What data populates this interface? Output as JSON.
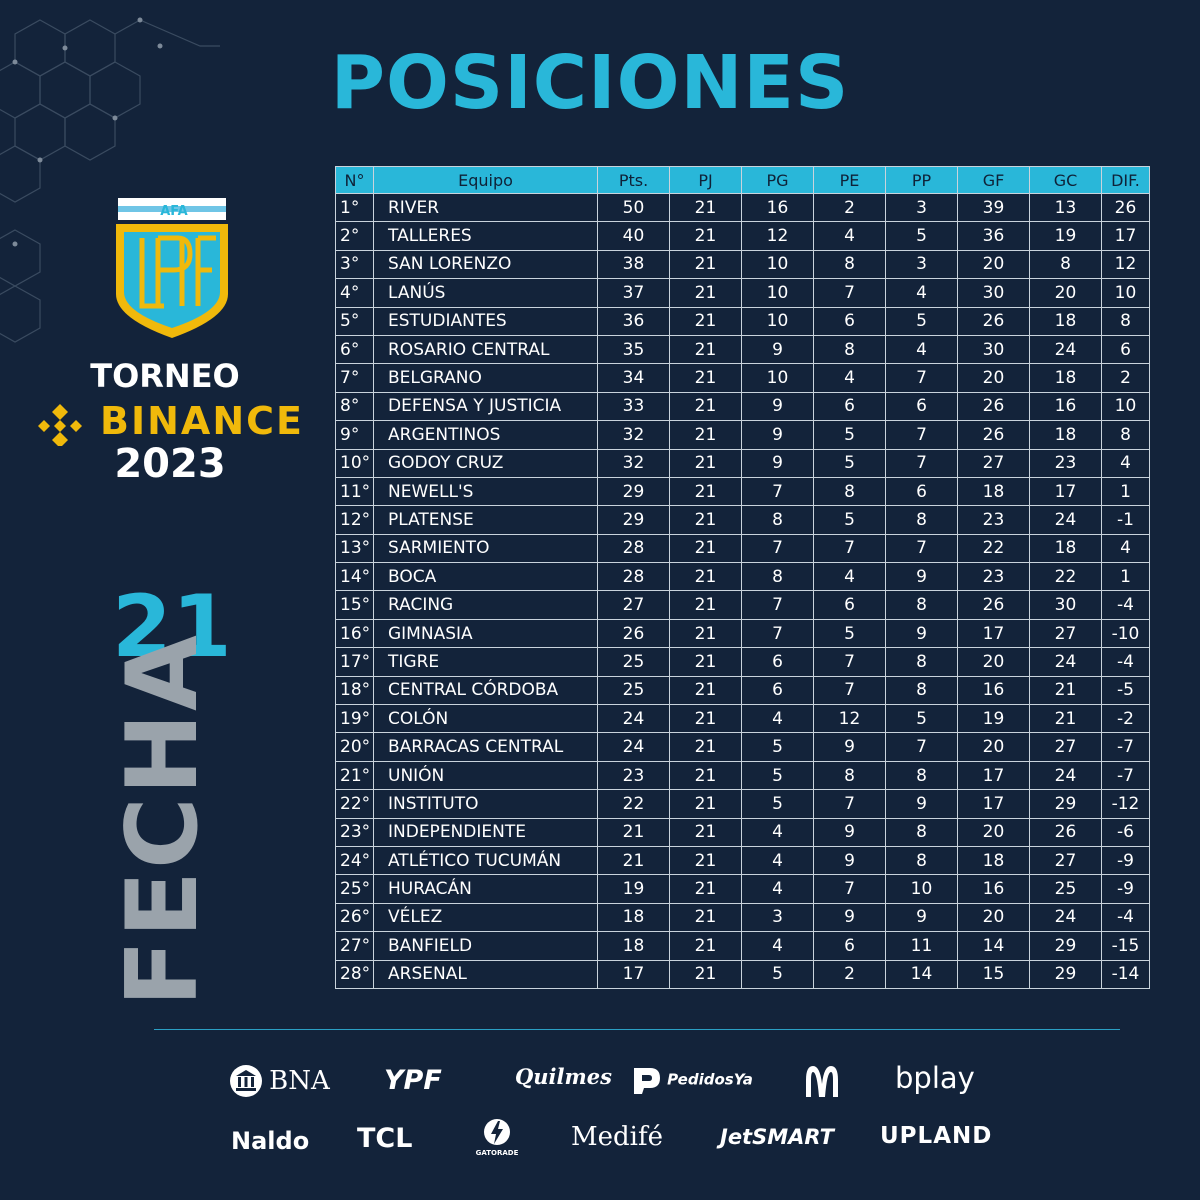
{
  "title": "POSICIONES",
  "logo": {
    "badge_text": "AFA",
    "monogram": "LPF",
    "tournament": "TORNEO",
    "sponsor": "BINANCE",
    "year": "2023",
    "colors": {
      "gold": "#f0b90b",
      "shield_blue": "#29b7d9"
    }
  },
  "round": {
    "number": "21",
    "label": "FECHA"
  },
  "table": {
    "columns": [
      "N°",
      "Equipo",
      "Pts.",
      "PJ",
      "PG",
      "PE",
      "PP",
      "GF",
      "GC",
      "DIF."
    ],
    "rows": [
      [
        "1°",
        "RIVER",
        "50",
        "21",
        "16",
        "2",
        "3",
        "39",
        "13",
        "26"
      ],
      [
        "2°",
        "TALLERES",
        "40",
        "21",
        "12",
        "4",
        "5",
        "36",
        "19",
        "17"
      ],
      [
        "3°",
        "SAN LORENZO",
        "38",
        "21",
        "10",
        "8",
        "3",
        "20",
        "8",
        "12"
      ],
      [
        "4°",
        "LANÚS",
        "37",
        "21",
        "10",
        "7",
        "4",
        "30",
        "20",
        "10"
      ],
      [
        "5°",
        "ESTUDIANTES",
        "36",
        "21",
        "10",
        "6",
        "5",
        "26",
        "18",
        "8"
      ],
      [
        "6°",
        "ROSARIO CENTRAL",
        "35",
        "21",
        "9",
        "8",
        "4",
        "30",
        "24",
        "6"
      ],
      [
        "7°",
        "BELGRANO",
        "34",
        "21",
        "10",
        "4",
        "7",
        "20",
        "18",
        "2"
      ],
      [
        "8°",
        "DEFENSA Y JUSTICIA",
        "33",
        "21",
        "9",
        "6",
        "6",
        "26",
        "16",
        "10"
      ],
      [
        "9°",
        "ARGENTINOS",
        "32",
        "21",
        "9",
        "5",
        "7",
        "26",
        "18",
        "8"
      ],
      [
        "10°",
        "GODOY CRUZ",
        "32",
        "21",
        "9",
        "5",
        "7",
        "27",
        "23",
        "4"
      ],
      [
        "11°",
        "NEWELL'S",
        "29",
        "21",
        "7",
        "8",
        "6",
        "18",
        "17",
        "1"
      ],
      [
        "12°",
        "PLATENSE",
        "29",
        "21",
        "8",
        "5",
        "8",
        "23",
        "24",
        "-1"
      ],
      [
        "13°",
        "SARMIENTO",
        "28",
        "21",
        "7",
        "7",
        "7",
        "22",
        "18",
        "4"
      ],
      [
        "14°",
        "BOCA",
        "28",
        "21",
        "8",
        "4",
        "9",
        "23",
        "22",
        "1"
      ],
      [
        "15°",
        "RACING",
        "27",
        "21",
        "7",
        "6",
        "8",
        "26",
        "30",
        "-4"
      ],
      [
        "16°",
        "GIMNASIA",
        "26",
        "21",
        "7",
        "5",
        "9",
        "17",
        "27",
        "-10"
      ],
      [
        "17°",
        "TIGRE",
        "25",
        "21",
        "6",
        "7",
        "8",
        "20",
        "24",
        "-4"
      ],
      [
        "18°",
        "CENTRAL CÓRDOBA",
        "25",
        "21",
        "6",
        "7",
        "8",
        "16",
        "21",
        "-5"
      ],
      [
        "19°",
        "COLÓN",
        "24",
        "21",
        "4",
        "12",
        "5",
        "19",
        "21",
        "-2"
      ],
      [
        "20°",
        "BARRACAS CENTRAL",
        "24",
        "21",
        "5",
        "9",
        "7",
        "20",
        "27",
        "-7"
      ],
      [
        "21°",
        "UNIÓN",
        "23",
        "21",
        "5",
        "8",
        "8",
        "17",
        "24",
        "-7"
      ],
      [
        "22°",
        "INSTITUTO",
        "22",
        "21",
        "5",
        "7",
        "9",
        "17",
        "29",
        "-12"
      ],
      [
        "23°",
        "INDEPENDIENTE",
        "21",
        "21",
        "4",
        "9",
        "8",
        "20",
        "26",
        "-6"
      ],
      [
        "24°",
        "ATLÉTICO TUCUMÁN",
        "21",
        "21",
        "4",
        "9",
        "8",
        "18",
        "27",
        "-9"
      ],
      [
        "25°",
        "HURACÁN",
        "19",
        "21",
        "4",
        "7",
        "10",
        "16",
        "25",
        "-9"
      ],
      [
        "26°",
        "VÉLEZ",
        "18",
        "21",
        "3",
        "9",
        "9",
        "20",
        "24",
        "-4"
      ],
      [
        "27°",
        "BANFIELD",
        "18",
        "21",
        "4",
        "6",
        "11",
        "14",
        "29",
        "-15"
      ],
      [
        "28°",
        "ARSENAL",
        "17",
        "21",
        "5",
        "2",
        "14",
        "15",
        "29",
        "-14"
      ]
    ]
  },
  "sponsors": {
    "row1": [
      "BNA",
      "YPF",
      "Quilmes",
      "PedidosYa",
      "McDonald's",
      "bplay"
    ],
    "row2": [
      "Naldo",
      "TCL",
      "GATORADE",
      "Medifé",
      "JetSMART",
      "UPLAND"
    ]
  },
  "colors": {
    "background": "#13233a",
    "accent": "#29b7d9",
    "muted": "#9aa3ab"
  }
}
